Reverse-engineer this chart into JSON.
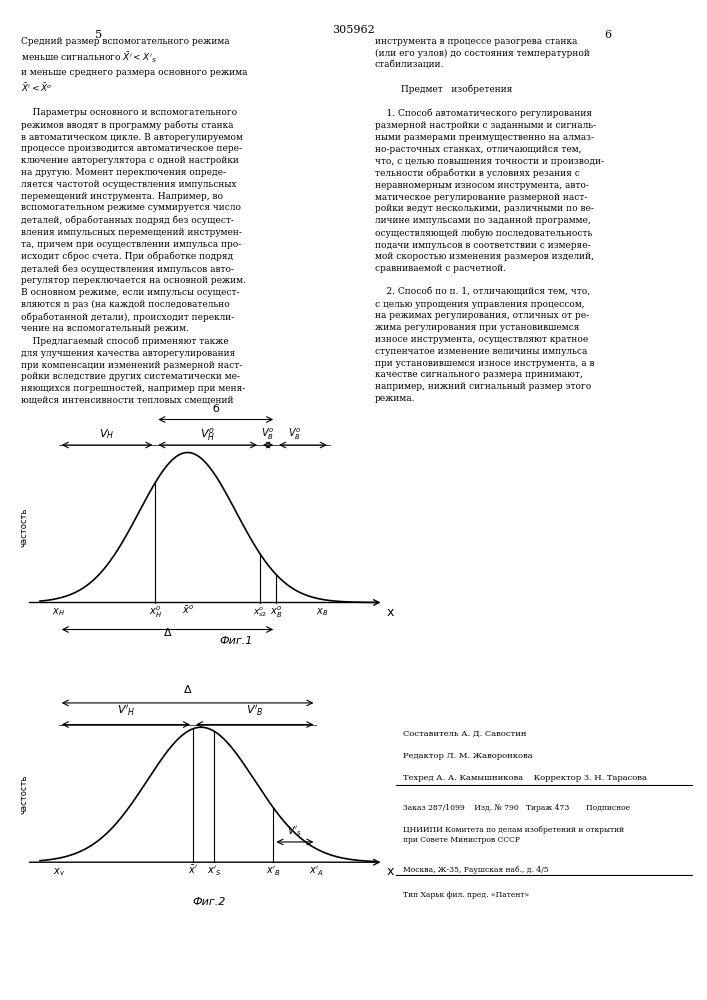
{
  "page_width": 7.07,
  "page_height": 10.0,
  "background_color": "#ffffff",
  "patent_number": "305962",
  "col_numbers": [
    "5",
    "6"
  ],
  "left_text_blocks": [
    "Средний размер вспомогательного режима",
    "меньше сигнального $\\bar{X}' < X'_S$",
    "и меньше среднего размера основного режима",
    "$\\bar{X}' < \\bar{X}^o$"
  ],
  "left_para": "    Параметры основного и вспомогательного режимов вводят в программу работы станка в автоматическом цикле. В авторегулируемом процессе производится автоматическое переключение авторегулятора с одной настройки на другую. Момент переключения авторегулятора определяется частотой осуществления импульсных перемещений инструмента. Например, во вспомогательном режиме суммируется число деталей, обработанных подряд без осуществления импульсных перемещений инструмента, причем при осуществлении импульса происходит сброс счета. При обработке подряд деталей без осуществления импульсов авто-регулятор переключается на основной режим. В основном режиме, если импульсы осуществляются n раз (на каждой последовательно обработанной детали), происходит переклю-чение на вспомогательный режим.",
  "left_para2": "    Предлагаемый способ применяют также для улучшения качества авторегулирования при компенсации изменений размерной наст-ройки вследствие других систематически ме-няющихся погрешностей, например при меня-щейся интенсивности тепловых смещений",
  "right_text_top": "инструмента в процессе разогрева станка (или его узлов) до состояния температурной стабилизации.",
  "predmet_header": "Предмет   изобретения",
  "claim1": "    1. Способ автоматического регулирования размерной настройки с заданными и сигнальными размерами преимущественно на алмаз-но-расточных станках, отличающийся тем, что, с целью повышения точности и производи-тельности обработки в условиях резания с неравномерным износом инструмента, авто-матическое регулирование размерной наст-ройки ведут несколькими, различными по ве-личине импульсами по заданной программе, осуществляющей любую последовательность подачи импульсов в соответствии с измеряе-мой скоростью изменения размеров изделий, сравниваемой с расчетной.",
  "claim2": "    2. Способ по п. 1, отличающийся тем, что, с целью упрощения управления процессом, на режимах регулирования, отличных от ре-жима регулирования при установившемся износе инструмента, осуществляют кратное ступенчатое изменение величины импульса при установившемся износе инструмента, а в качестве сигнального размера принимают, например, нижний сигнальный размер этого режима.",
  "fig1_caption": "Фиг.1",
  "fig2_caption": "Фиг.2",
  "footer_lines": [
    "Составитель А. Д. Савостин",
    "Редактор Л. М. Жаворонкова",
    "Техред А. А. Камышникова    Корректор З. Н. Тарасова",
    "Заказ 287/1099    Изд. № 790   Тираж 473       Подписное",
    "ЦНИИПИ Комитета по делам изобретений и открытий при Совете Министров СССР",
    "Москва, Ж-35, Раушская наб., д. 4/5",
    "Тип Харьк фил. пред. «Патент»"
  ]
}
